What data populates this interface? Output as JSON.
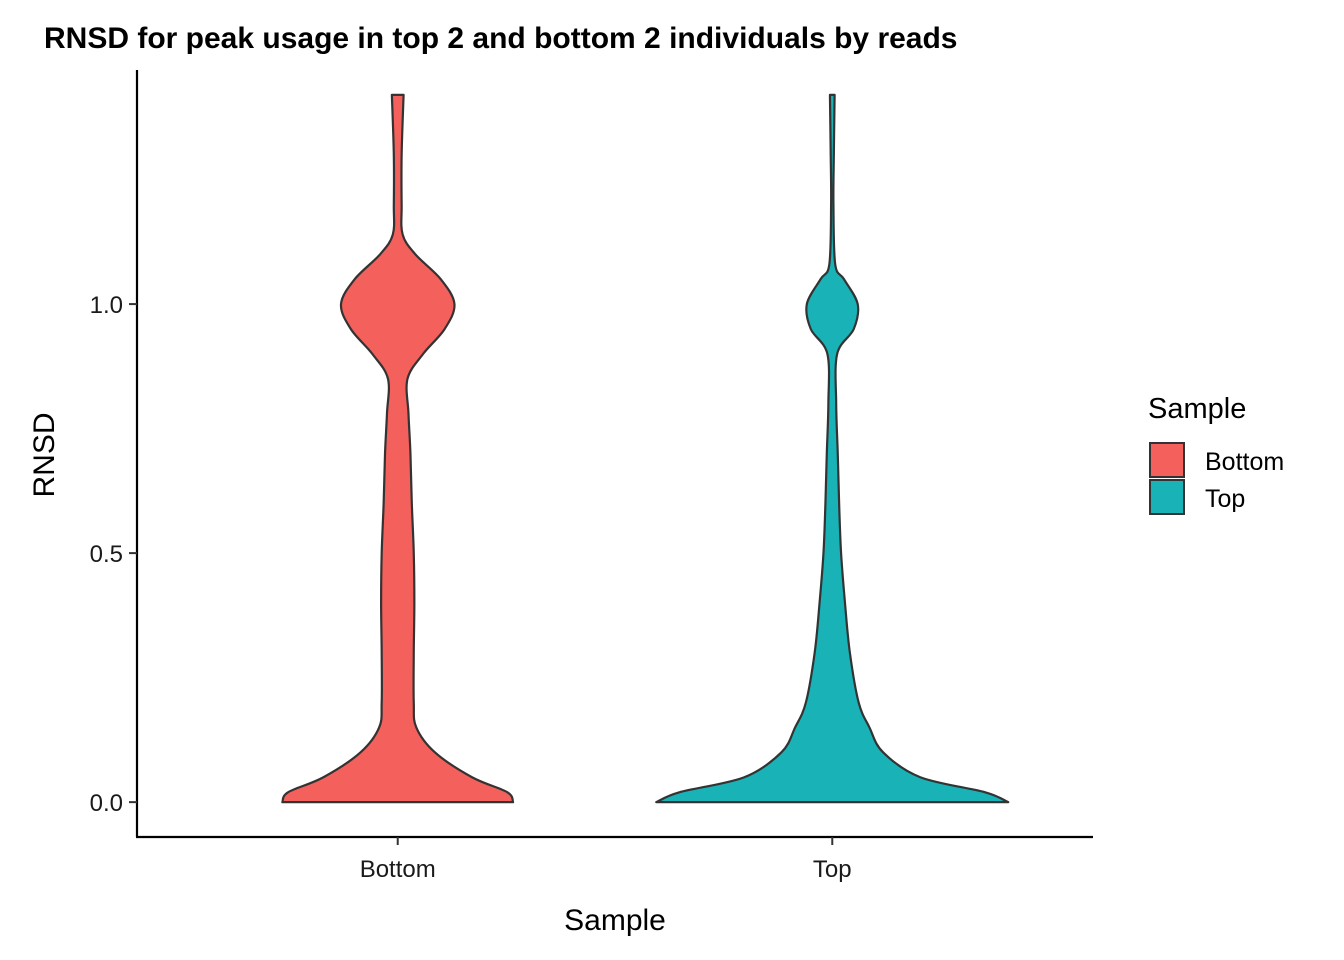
{
  "chart_data": {
    "type": "violin",
    "title": "RNSD for peak usage in top 2 and bottom 2 individuals by reads",
    "xlabel": "Sample",
    "ylabel": "RNSD",
    "categories": [
      "Bottom",
      "Top"
    ],
    "ylim": [
      -0.07,
      1.47
    ],
    "yticks": [
      0.0,
      0.5,
      1.0
    ],
    "ytick_labels": [
      "0.0",
      "0.5",
      "1.0"
    ],
    "grid": false,
    "legend": {
      "title": "Sample",
      "placement": "right",
      "entries": [
        "Bottom",
        "Top"
      ]
    },
    "series": [
      {
        "category": "Bottom",
        "color": "#F4605C",
        "y_range": [
          0.0,
          1.42
        ],
        "density_profile": [
          [
            0.0,
            0.59
          ],
          [
            0.02,
            0.56
          ],
          [
            0.05,
            0.38
          ],
          [
            0.1,
            0.19
          ],
          [
            0.15,
            0.095
          ],
          [
            0.2,
            0.082
          ],
          [
            0.3,
            0.082
          ],
          [
            0.4,
            0.085
          ],
          [
            0.5,
            0.082
          ],
          [
            0.6,
            0.072
          ],
          [
            0.7,
            0.065
          ],
          [
            0.78,
            0.055
          ],
          [
            0.85,
            0.05
          ],
          [
            0.9,
            0.13
          ],
          [
            0.95,
            0.24
          ],
          [
            1.0,
            0.29
          ],
          [
            1.05,
            0.22
          ],
          [
            1.1,
            0.09
          ],
          [
            1.14,
            0.025
          ],
          [
            1.2,
            0.02
          ],
          [
            1.3,
            0.02
          ],
          [
            1.42,
            0.03
          ]
        ]
      },
      {
        "category": "Top",
        "color": "#19B3B7",
        "y_range": [
          0.0,
          1.42
        ],
        "density_profile": [
          [
            0.0,
            0.9
          ],
          [
            0.02,
            0.78
          ],
          [
            0.05,
            0.45
          ],
          [
            0.1,
            0.26
          ],
          [
            0.15,
            0.19
          ],
          [
            0.2,
            0.135
          ],
          [
            0.3,
            0.09
          ],
          [
            0.4,
            0.065
          ],
          [
            0.5,
            0.045
          ],
          [
            0.6,
            0.035
          ],
          [
            0.7,
            0.028
          ],
          [
            0.8,
            0.02
          ],
          [
            0.9,
            0.025
          ],
          [
            0.95,
            0.11
          ],
          [
            1.0,
            0.13
          ],
          [
            1.05,
            0.06
          ],
          [
            1.08,
            0.015
          ],
          [
            1.2,
            0.006
          ],
          [
            1.3,
            0.008
          ],
          [
            1.42,
            0.012
          ]
        ]
      }
    ]
  }
}
